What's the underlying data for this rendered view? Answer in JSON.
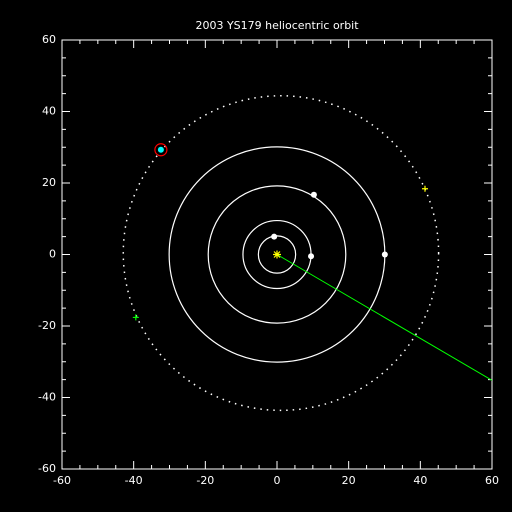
{
  "chart_data": {
    "type": "orbit",
    "title": "2003 YS179 heliocentric orbit",
    "xlim": [
      -60,
      60
    ],
    "ylim": [
      -60,
      60
    ],
    "xticks": [
      -60,
      -40,
      -20,
      0,
      20,
      40,
      60
    ],
    "yticks": [
      -60,
      -40,
      -20,
      0,
      20,
      40,
      60
    ],
    "minor_divisions": 4,
    "axis_color": "#ffffff",
    "orbits": {
      "radii": [
        5.2,
        9.5,
        19.2,
        30.1
      ],
      "color": "#ffffff"
    },
    "planets": {
      "x": [
        -0.8,
        9.5,
        10.3,
        30.1
      ],
      "y": [
        5.0,
        -0.5,
        16.7,
        0.0
      ],
      "color": "#ffffff"
    },
    "object": {
      "x": -32.4,
      "y": 29.3,
      "color": "#00ffff",
      "ring_color": "#ff0000"
    },
    "object_orbit": {
      "cx": 1.1,
      "cy": 0.4,
      "r": 44.0,
      "color": "#ffffff"
    },
    "markers": [
      {
        "x": 41.3,
        "y": 18.4,
        "color": "#ffff00"
      },
      {
        "x": -39.4,
        "y": -17.6,
        "color": "#00ff00"
      }
    ],
    "sun": {
      "x": 0,
      "y": 0,
      "color": "#ffff00"
    },
    "direction": {
      "x": [
        0,
        60
      ],
      "y": [
        0,
        -35.2
      ],
      "color": "#00ff00"
    }
  }
}
